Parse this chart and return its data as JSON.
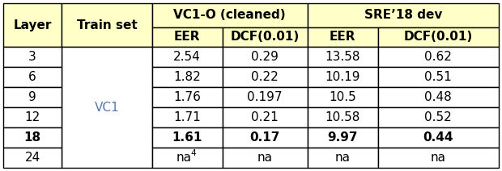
{
  "header_bg": "#FFFFC8",
  "white_bg": "#FFFFFF",
  "border_color": "#000000",
  "fig_bg": "#FFFFFF",
  "vc1_label": "VC1-O (cleaned)",
  "sre_label": "SRE’18 dev",
  "vc1_color": "#5577AA",
  "rows": [
    [
      "3",
      "2.54",
      "0.29",
      "13.58",
      "0.62"
    ],
    [
      "6",
      "1.82",
      "0.22",
      "10.19",
      "0.51"
    ],
    [
      "9",
      "1.76",
      "0.197",
      "10.5",
      "0.48"
    ],
    [
      "12",
      "1.71",
      "0.21",
      "10.58",
      "0.52"
    ],
    [
      "18",
      "1.61",
      "0.17",
      "9.97",
      "0.44"
    ],
    [
      "24",
      "na",
      "na",
      "na",
      "na"
    ]
  ],
  "bold_row": 4,
  "na_superscript_row": 5,
  "na_superscript_col": 1,
  "superscript": "4",
  "figw": 6.2,
  "figh": 2.12,
  "dpi": 100
}
